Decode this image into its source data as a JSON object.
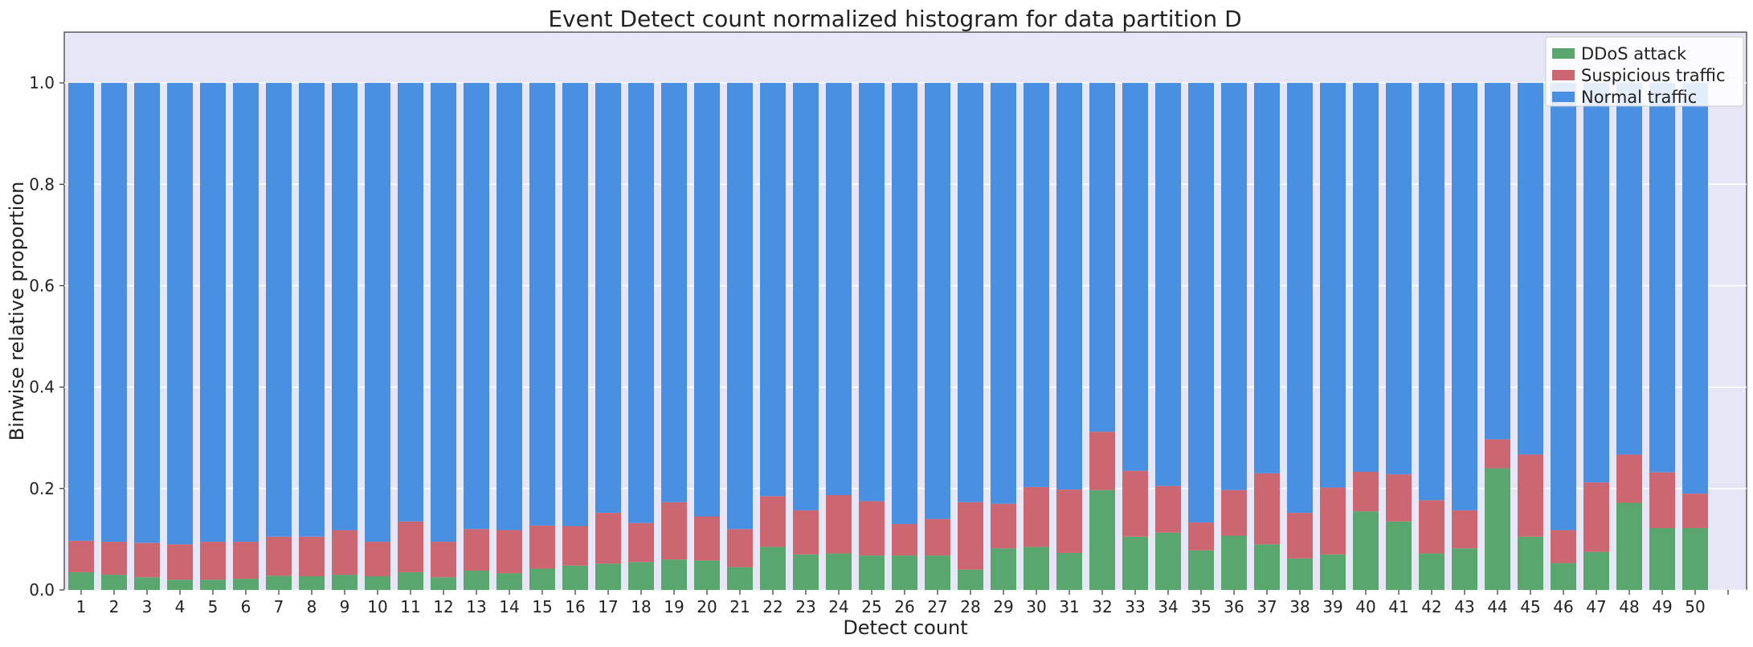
{
  "chart_data": {
    "type": "bar",
    "stacked": true,
    "title": "Event Detect count normalized histogram for data partition D",
    "xlabel": "Detect count",
    "ylabel": "Binwise relative proportion",
    "ylim": [
      0,
      1.1
    ],
    "yticks": [
      "0.0",
      "0.2",
      "0.4",
      "0.6",
      "0.8",
      "1.0"
    ],
    "grid": true,
    "legend_position": "top-right",
    "categories": [
      "1",
      "2",
      "3",
      "4",
      "5",
      "6",
      "7",
      "8",
      "9",
      "10",
      "11",
      "12",
      "13",
      "14",
      "15",
      "16",
      "17",
      "18",
      "19",
      "20",
      "21",
      "22",
      "23",
      "24",
      "25",
      "26",
      "27",
      "28",
      "29",
      "30",
      "31",
      "32",
      "33",
      "34",
      "35",
      "36",
      "37",
      "38",
      "39",
      "40",
      "41",
      "42",
      "43",
      "44",
      "45",
      "46",
      "47",
      "48",
      "49",
      "50"
    ],
    "series": [
      {
        "name": "DDoS attack",
        "color": "#5aa66f",
        "values": [
          0.035,
          0.03,
          0.025,
          0.02,
          0.02,
          0.022,
          0.028,
          0.027,
          0.03,
          0.027,
          0.035,
          0.025,
          0.038,
          0.033,
          0.042,
          0.048,
          0.052,
          0.055,
          0.06,
          0.058,
          0.045,
          0.085,
          0.07,
          0.072,
          0.068,
          0.068,
          0.068,
          0.04,
          0.082,
          0.085,
          0.073,
          0.197,
          0.105,
          0.113,
          0.078,
          0.107,
          0.09,
          0.062,
          0.07,
          0.155,
          0.135,
          0.072,
          0.082,
          0.24,
          0.105,
          0.053,
          0.075,
          0.172,
          0.122,
          0.122
        ]
      },
      {
        "name": "Suspicious traffic",
        "color": "#cc6670",
        "values": [
          0.062,
          0.065,
          0.068,
          0.07,
          0.075,
          0.073,
          0.077,
          0.078,
          0.088,
          0.068,
          0.1,
          0.07,
          0.082,
          0.085,
          0.085,
          0.078,
          0.1,
          0.077,
          0.113,
          0.087,
          0.075,
          0.1,
          0.087,
          0.115,
          0.107,
          0.062,
          0.072,
          0.133,
          0.088,
          0.118,
          0.125,
          0.115,
          0.13,
          0.092,
          0.055,
          0.09,
          0.14,
          0.09,
          0.132,
          0.078,
          0.093,
          0.105,
          0.075,
          0.057,
          0.162,
          0.065,
          0.137,
          0.095,
          0.11,
          0.068
        ]
      },
      {
        "name": "Normal traffic",
        "color": "#4a90e2",
        "values": [
          0.903,
          0.905,
          0.907,
          0.91,
          0.905,
          0.905,
          0.895,
          0.895,
          0.882,
          0.905,
          0.865,
          0.905,
          0.88,
          0.882,
          0.873,
          0.874,
          0.848,
          0.868,
          0.827,
          0.855,
          0.88,
          0.815,
          0.843,
          0.813,
          0.825,
          0.87,
          0.86,
          0.827,
          0.83,
          0.797,
          0.802,
          0.688,
          0.765,
          0.795,
          0.867,
          0.803,
          0.77,
          0.848,
          0.798,
          0.767,
          0.772,
          0.823,
          0.843,
          0.703,
          0.733,
          0.882,
          0.788,
          0.733,
          0.768,
          0.81
        ]
      }
    ]
  }
}
